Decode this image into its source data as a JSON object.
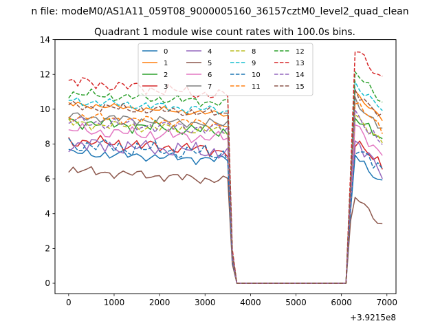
{
  "suptitle": "n file: modeM0/AS1A11_059T08_9000005160_36157cztM0_level2_quad_clean",
  "chart_data": {
    "type": "line",
    "title": "Quadrant 1 module wise count rates with 100.0s bins.",
    "xlabel": "",
    "ylabel": "",
    "x_offset_text": "+3.9215e8",
    "xlim": [
      -300,
      7200
    ],
    "ylim": [
      -0.6,
      14.0
    ],
    "xticks": [
      0,
      1000,
      2000,
      3000,
      4000,
      5000,
      6000,
      7000
    ],
    "yticks": [
      0,
      2,
      4,
      6,
      8,
      10,
      12,
      14
    ],
    "grid": false,
    "legend_position": "top-center",
    "legend_columns": 4,
    "x": [
      0,
      100,
      200,
      300,
      400,
      500,
      600,
      700,
      800,
      900,
      1000,
      1100,
      1200,
      1300,
      1400,
      1500,
      1600,
      1700,
      1800,
      1900,
      2000,
      2100,
      2200,
      2300,
      2400,
      2500,
      2600,
      2700,
      2800,
      2900,
      3000,
      3100,
      3200,
      3300,
      3400,
      3500,
      3600,
      3700,
      3800,
      3900,
      4000,
      4100,
      4200,
      4300,
      4400,
      4500,
      4600,
      4700,
      4800,
      4900,
      5000,
      5100,
      5200,
      5300,
      5400,
      5500,
      5600,
      5700,
      5800,
      5900,
      6000,
      6100,
      6200,
      6300,
      6400,
      6500,
      6600,
      6700,
      6800,
      6900
    ],
    "series": [
      {
        "name": "0",
        "color": "#1f77b4",
        "dash": "solid",
        "base": 7.5,
        "amp": 0.3,
        "gain": 0.93,
        "low": 6.8,
        "phase": 0.3
      },
      {
        "name": "1",
        "color": "#ff7f0e",
        "dash": "solid",
        "base": 10.3,
        "amp": 0.2,
        "gain": 1.03,
        "low": 9.3,
        "phase": 1.1
      },
      {
        "name": "2",
        "color": "#2ca02c",
        "dash": "solid",
        "base": 9.3,
        "amp": 0.4,
        "gain": 1.0,
        "low": 8.3,
        "phase": 2.0
      },
      {
        "name": "3",
        "color": "#d62728",
        "dash": "solid",
        "base": 8.2,
        "amp": 0.4,
        "gain": 0.95,
        "low": 7.2,
        "phase": 2.7
      },
      {
        "name": "4",
        "color": "#9467bd",
        "dash": "solid",
        "base": 8.0,
        "amp": 0.5,
        "gain": 0.95,
        "low": 7.2,
        "phase": 3.4
      },
      {
        "name": "5",
        "color": "#8c564b",
        "dash": "solid",
        "base": 6.5,
        "amp": 0.3,
        "gain": 0.7,
        "low": 5.5,
        "phase": 4.1
      },
      {
        "name": "6",
        "color": "#e377c2",
        "dash": "solid",
        "base": 8.8,
        "amp": 0.4,
        "gain": 0.98,
        "low": 8.0,
        "phase": 4.9
      },
      {
        "name": "7",
        "color": "#7f7f7f",
        "dash": "solid",
        "base": 9.6,
        "amp": 0.3,
        "gain": 1.05,
        "low": 8.8,
        "phase": 5.6
      },
      {
        "name": "8",
        "color": "#bcbd22",
        "dash": "dashed",
        "base": 9.2,
        "amp": 0.3,
        "gain": 1.01,
        "low": 8.4,
        "phase": 0.8
      },
      {
        "name": "9",
        "color": "#17becf",
        "dash": "dashed",
        "base": 10.5,
        "amp": 0.3,
        "gain": 1.06,
        "low": 9.5,
        "phase": 1.6
      },
      {
        "name": "10",
        "color": "#1f77b4",
        "dash": "dashed",
        "base": 8.0,
        "amp": 0.5,
        "gain": 0.94,
        "low": 7.0,
        "phase": 2.3
      },
      {
        "name": "11",
        "color": "#ff7f0e",
        "dash": "dashed",
        "base": 9.6,
        "amp": 0.3,
        "gain": 1.04,
        "low": 8.8,
        "phase": 3.0
      },
      {
        "name": "12",
        "color": "#2ca02c",
        "dash": "dashed",
        "base": 10.9,
        "amp": 0.3,
        "gain": 1.07,
        "low": 10.0,
        "phase": 3.8
      },
      {
        "name": "13",
        "color": "#d62728",
        "dash": "dashed",
        "base": 11.6,
        "amp": 0.4,
        "gain": 1.12,
        "low": 10.2,
        "phase": 4.5
      },
      {
        "name": "14",
        "color": "#9467bd",
        "dash": "dashed",
        "base": 9.3,
        "amp": 0.4,
        "gain": 1.0,
        "low": 8.5,
        "phase": 5.2
      },
      {
        "name": "15",
        "color": "#8c564b",
        "dash": "dashed",
        "base": 10.2,
        "amp": 0.3,
        "gain": 1.05,
        "low": 9.4,
        "phase": 6.0
      }
    ],
    "gap": {
      "start": 3700,
      "end": 6100,
      "value": 0,
      "partial_at_3600_ratio": 0.17,
      "partial_at_6200_ratio": 0.55
    }
  }
}
